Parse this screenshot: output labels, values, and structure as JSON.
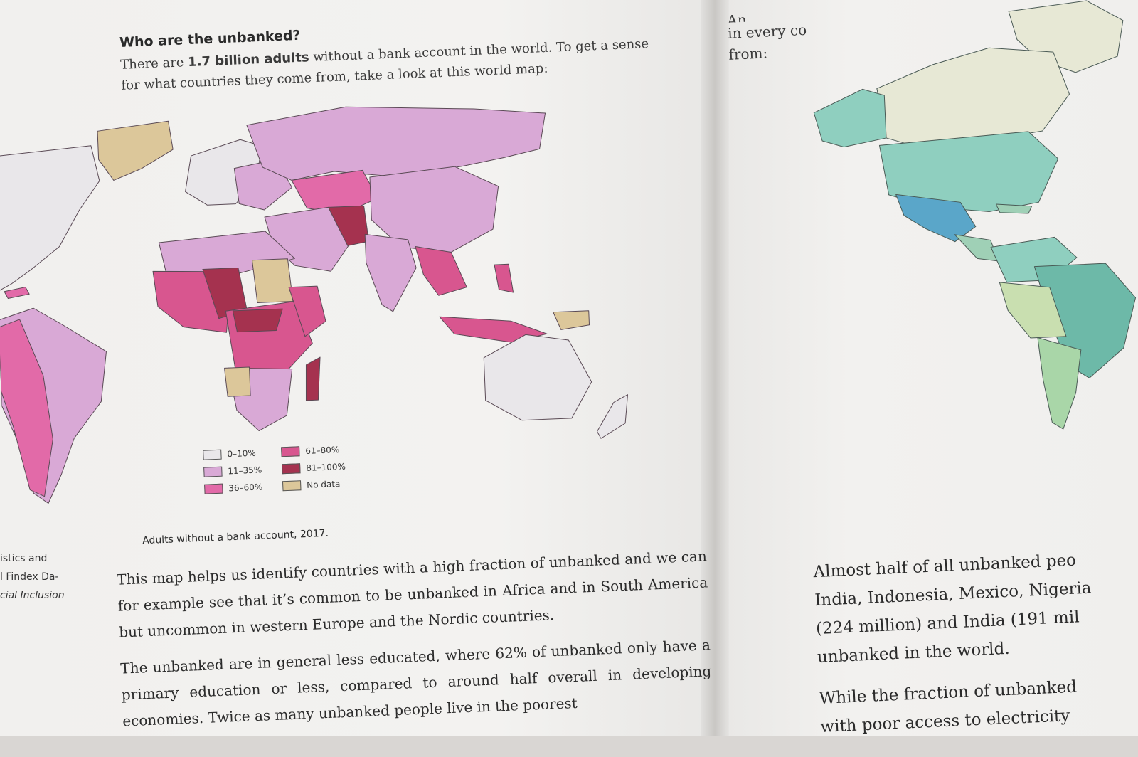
{
  "left_page": {
    "heading": "Who are the unbanked?",
    "intro_prefix": "There are ",
    "intro_bold": "1.7 billion adults",
    "intro_suffix": " without a bank account in the world. To get a sense for what countries they come from, take a look at this world map:",
    "legend": [
      {
        "label": "0–10%",
        "color": "#e9e7ea"
      },
      {
        "label": "61–80%",
        "color": "#d8568f"
      },
      {
        "label": "11–35%",
        "color": "#d9a9d6"
      },
      {
        "label": "81–100%",
        "color": "#a5324f"
      },
      {
        "label": "36–60%",
        "color": "#e26aa8"
      },
      {
        "label": "No data",
        "color": "#dcc79a"
      }
    ],
    "caption": "Adults without a bank account, 2017.",
    "side_note_lines": [
      "istics and",
      "l Findex Da-",
      "cial Inclusion"
    ],
    "paragraphs": [
      "This map helps us identify countries with a high fraction of unbanked and we can for example see that it’s common to be unbanked in Africa and in South America but uncommon in western Europe and the Nordic countries.",
      "The unbanked are in general less educated, where 62% of unbanked only have a primary education or less, compared to around half overall in developing economies. Twice as many unbanked people live in the poorest"
    ]
  },
  "right_page": {
    "top_lines": [
      "An",
      "in every co",
      "from:"
    ],
    "paragraphs": [
      [
        "Almost half of all unbanked peo",
        "India, Indonesia, Mexico, Nigeria",
        "(224 million) and India (191 mil",
        "unbanked in the world."
      ],
      [
        "While the fraction of unbanked",
        "with poor access to electricity"
      ]
    ]
  }
}
